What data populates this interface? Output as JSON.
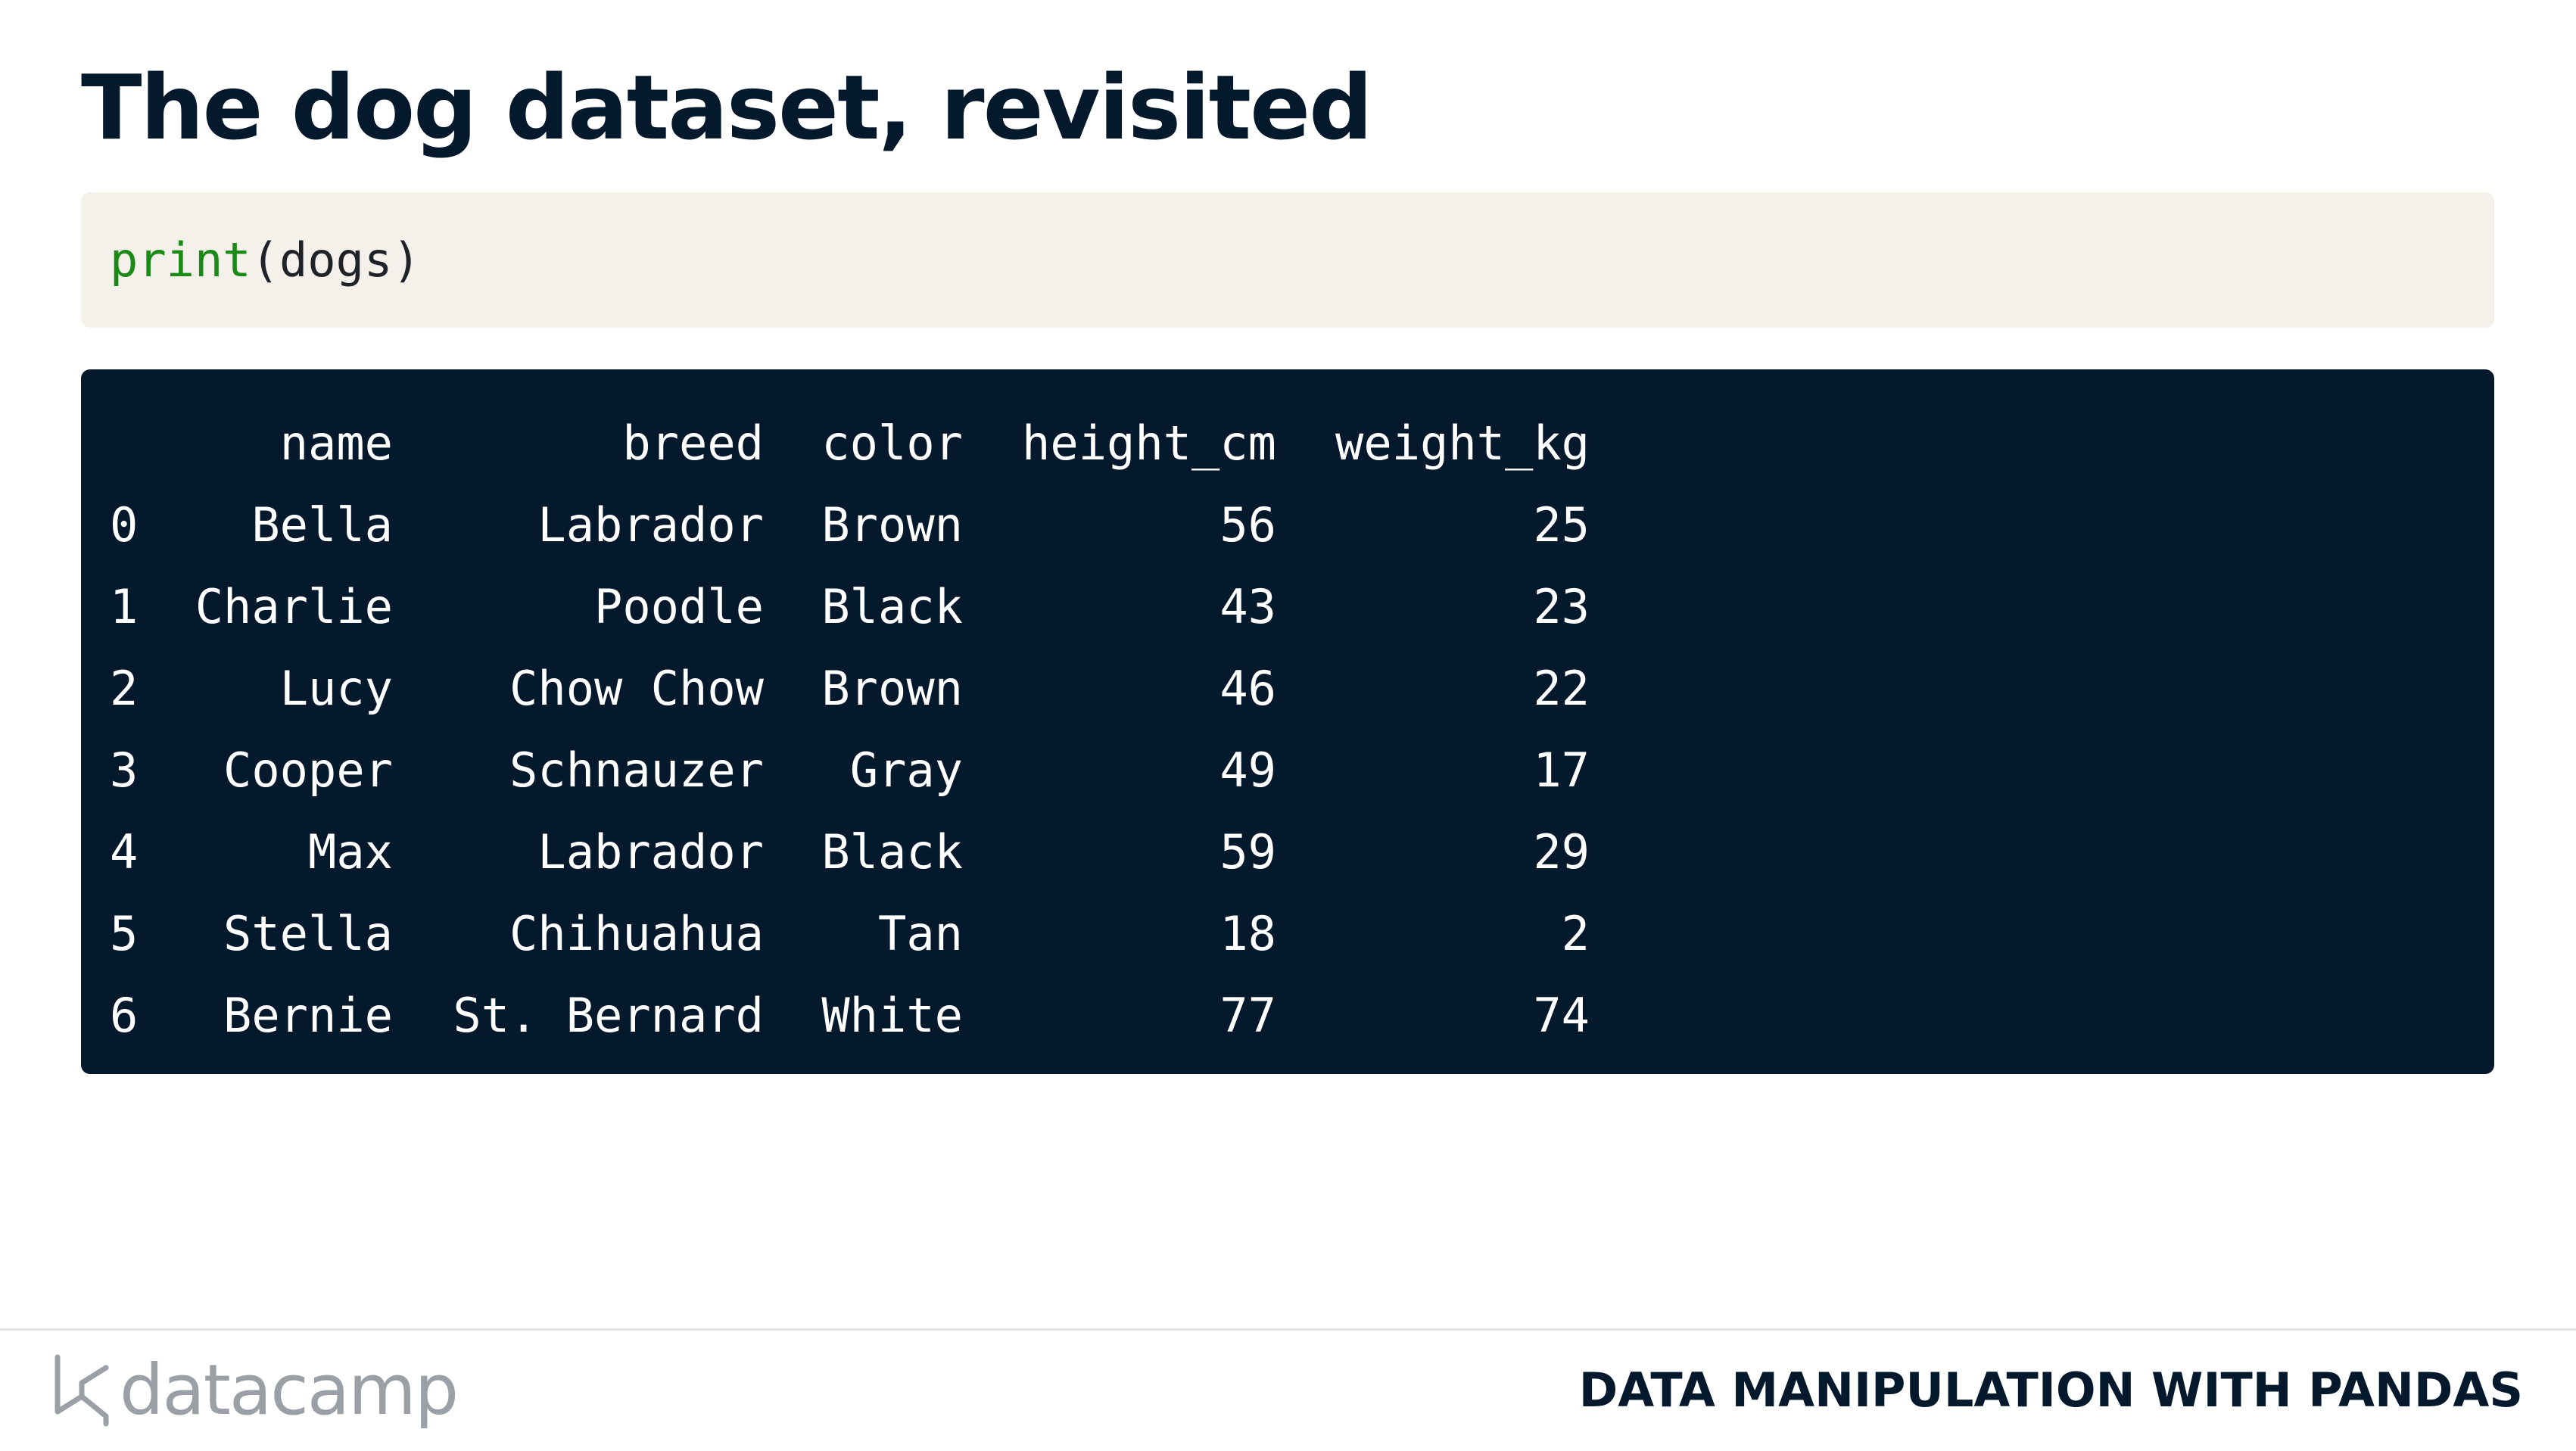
{
  "slide": {
    "title": "The dog dataset, revisited"
  },
  "code": {
    "function": "print",
    "argument": "(dogs)"
  },
  "output": {
    "columns": [
      "name",
      "breed",
      "color",
      "height_cm",
      "weight_kg"
    ],
    "rows": [
      {
        "index": "0",
        "name": "Bella",
        "breed": "Labrador",
        "color": "Brown",
        "height_cm": "56",
        "weight_kg": "25"
      },
      {
        "index": "1",
        "name": "Charlie",
        "breed": "Poodle",
        "color": "Black",
        "height_cm": "43",
        "weight_kg": "23"
      },
      {
        "index": "2",
        "name": "Lucy",
        "breed": "Chow Chow",
        "color": "Brown",
        "height_cm": "46",
        "weight_kg": "22"
      },
      {
        "index": "3",
        "name": "Cooper",
        "breed": "Schnauzer",
        "color": "Gray",
        "height_cm": "49",
        "weight_kg": "17"
      },
      {
        "index": "4",
        "name": "Max",
        "breed": "Labrador",
        "color": "Black",
        "height_cm": "59",
        "weight_kg": "29"
      },
      {
        "index": "5",
        "name": "Stella",
        "breed": "Chihuahua",
        "color": "Tan",
        "height_cm": "18",
        "weight_kg": "2"
      },
      {
        "index": "6",
        "name": "Bernie",
        "breed": "St. Bernard",
        "color": "White",
        "height_cm": "77",
        "weight_kg": "74"
      }
    ]
  },
  "footer": {
    "logo_text": "datacamp",
    "logo_icon": "datacamp-logo-icon",
    "course_name": "DATA MANIPULATION WITH PANDAS"
  },
  "colors": {
    "title": "#05192d",
    "code_background": "#f4f1ea",
    "code_keyword": "#1a8a16",
    "output_background": "#05192d",
    "output_text": "#ffffff",
    "logo": "#9aa0a6"
  }
}
